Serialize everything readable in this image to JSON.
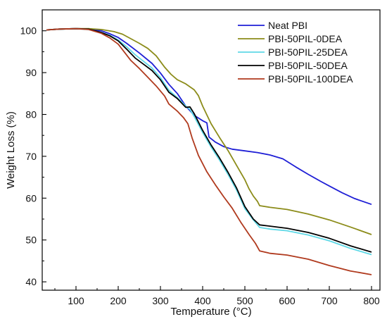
{
  "chart_data": {
    "type": "line",
    "title": "",
    "xlabel": "Temperature (°C)",
    "ylabel": "Weight Loss (%)",
    "xlim": [
      20,
      820
    ],
    "ylim": [
      38,
      105
    ],
    "xticks": [
      100,
      200,
      300,
      400,
      500,
      600,
      700,
      800
    ],
    "yticks": [
      40,
      50,
      60,
      70,
      80,
      90,
      100
    ],
    "grid": false,
    "legend_position": "top-right",
    "series": [
      {
        "name": "Neat PBI",
        "color": "#1f1fd6",
        "points": [
          [
            30,
            100.2
          ],
          [
            60,
            100.4
          ],
          [
            100,
            100.5
          ],
          [
            130,
            100.4
          ],
          [
            160,
            100
          ],
          [
            180,
            99.3
          ],
          [
            200,
            98.4
          ],
          [
            220,
            97
          ],
          [
            250,
            94.7
          ],
          [
            280,
            92.2
          ],
          [
            300,
            89.9
          ],
          [
            320,
            87.2
          ],
          [
            340,
            85
          ],
          [
            360,
            82
          ],
          [
            380,
            79.8
          ],
          [
            400,
            78.5
          ],
          [
            410,
            78
          ],
          [
            415,
            74.6
          ],
          [
            430,
            73.4
          ],
          [
            450,
            72.3
          ],
          [
            470,
            71.7
          ],
          [
            500,
            71.3
          ],
          [
            530,
            70.9
          ],
          [
            560,
            70.3
          ],
          [
            590,
            69.4
          ],
          [
            620,
            67.5
          ],
          [
            650,
            65.7
          ],
          [
            680,
            64
          ],
          [
            700,
            62.9
          ],
          [
            730,
            61.3
          ],
          [
            760,
            59.9
          ],
          [
            800,
            58.5
          ]
        ]
      },
      {
        "name": "PBI-50PIL-0DEA",
        "color": "#8c8c1a",
        "points": [
          [
            30,
            100.2
          ],
          [
            60,
            100.4
          ],
          [
            100,
            100.5
          ],
          [
            130,
            100.5
          ],
          [
            160,
            100.3
          ],
          [
            190,
            99.8
          ],
          [
            210,
            99.2
          ],
          [
            230,
            98.1
          ],
          [
            250,
            97
          ],
          [
            270,
            95.8
          ],
          [
            290,
            94
          ],
          [
            310,
            91.3
          ],
          [
            325,
            89.6
          ],
          [
            340,
            88.3
          ],
          [
            360,
            87.3
          ],
          [
            380,
            85.9
          ],
          [
            390,
            84.5
          ],
          [
            400,
            82
          ],
          [
            420,
            77.8
          ],
          [
            440,
            74.5
          ],
          [
            460,
            71.4
          ],
          [
            480,
            67.9
          ],
          [
            500,
            64.4
          ],
          [
            510,
            62.2
          ],
          [
            520,
            60.5
          ],
          [
            530,
            59.2
          ],
          [
            535,
            58.2
          ],
          [
            560,
            57.8
          ],
          [
            600,
            57.3
          ],
          [
            650,
            56.2
          ],
          [
            700,
            54.8
          ],
          [
            750,
            53.1
          ],
          [
            800,
            51.3
          ]
        ]
      },
      {
        "name": "PBI-50PIL-25DEA",
        "color": "#5fd8e6",
        "points": [
          [
            30,
            100.2
          ],
          [
            60,
            100.4
          ],
          [
            100,
            100.5
          ],
          [
            130,
            100.3
          ],
          [
            160,
            99.6
          ],
          [
            180,
            98.9
          ],
          [
            200,
            97.8
          ],
          [
            220,
            96.2
          ],
          [
            240,
            94.3
          ],
          [
            260,
            92.7
          ],
          [
            280,
            91.1
          ],
          [
            300,
            88.8
          ],
          [
            320,
            85.8
          ],
          [
            340,
            84
          ],
          [
            360,
            82
          ],
          [
            370,
            81.2
          ],
          [
            380,
            79.5
          ],
          [
            400,
            75.7
          ],
          [
            420,
            72.2
          ],
          [
            440,
            69.1
          ],
          [
            460,
            65.7
          ],
          [
            480,
            62
          ],
          [
            500,
            57.5
          ],
          [
            520,
            54.8
          ],
          [
            535,
            53
          ],
          [
            560,
            52.6
          ],
          [
            600,
            52.2
          ],
          [
            650,
            51.2
          ],
          [
            700,
            49.8
          ],
          [
            750,
            48
          ],
          [
            800,
            46.5
          ]
        ]
      },
      {
        "name": "PBI-50PIL-50DEA",
        "color": "#000000",
        "points": [
          [
            30,
            100.2
          ],
          [
            60,
            100.4
          ],
          [
            100,
            100.5
          ],
          [
            130,
            100.4
          ],
          [
            160,
            99.6
          ],
          [
            180,
            98.8
          ],
          [
            200,
            97.6
          ],
          [
            220,
            95.6
          ],
          [
            240,
            93.5
          ],
          [
            260,
            92
          ],
          [
            280,
            90.5
          ],
          [
            300,
            88.3
          ],
          [
            320,
            85.3
          ],
          [
            340,
            83.8
          ],
          [
            360,
            81.7
          ],
          [
            370,
            81.8
          ],
          [
            380,
            80.2
          ],
          [
            400,
            76.2
          ],
          [
            420,
            72.7
          ],
          [
            440,
            69.6
          ],
          [
            460,
            66.2
          ],
          [
            480,
            62.5
          ],
          [
            500,
            58
          ],
          [
            520,
            55
          ],
          [
            535,
            53.6
          ],
          [
            560,
            53.3
          ],
          [
            600,
            52.8
          ],
          [
            650,
            51.8
          ],
          [
            700,
            50.4
          ],
          [
            750,
            48.6
          ],
          [
            800,
            47.1
          ]
        ]
      },
      {
        "name": "PBI-50PIL-100DEA",
        "color": "#b03a1e",
        "points": [
          [
            30,
            100.2
          ],
          [
            60,
            100.4
          ],
          [
            100,
            100.5
          ],
          [
            130,
            100.3
          ],
          [
            160,
            99.4
          ],
          [
            180,
            98.3
          ],
          [
            200,
            96.8
          ],
          [
            210,
            95.5
          ],
          [
            230,
            92.9
          ],
          [
            250,
            91
          ],
          [
            270,
            88.9
          ],
          [
            290,
            86.8
          ],
          [
            310,
            84.4
          ],
          [
            320,
            82.5
          ],
          [
            340,
            80.8
          ],
          [
            355,
            79.2
          ],
          [
            365,
            77.8
          ],
          [
            375,
            74.4
          ],
          [
            390,
            70.2
          ],
          [
            410,
            66.3
          ],
          [
            430,
            63.2
          ],
          [
            450,
            60.3
          ],
          [
            470,
            57.6
          ],
          [
            490,
            54.3
          ],
          [
            510,
            51.3
          ],
          [
            525,
            49.2
          ],
          [
            535,
            47.4
          ],
          [
            560,
            46.8
          ],
          [
            600,
            46.4
          ],
          [
            650,
            45.4
          ],
          [
            700,
            43.9
          ],
          [
            750,
            42.6
          ],
          [
            800,
            41.7
          ]
        ]
      }
    ]
  }
}
